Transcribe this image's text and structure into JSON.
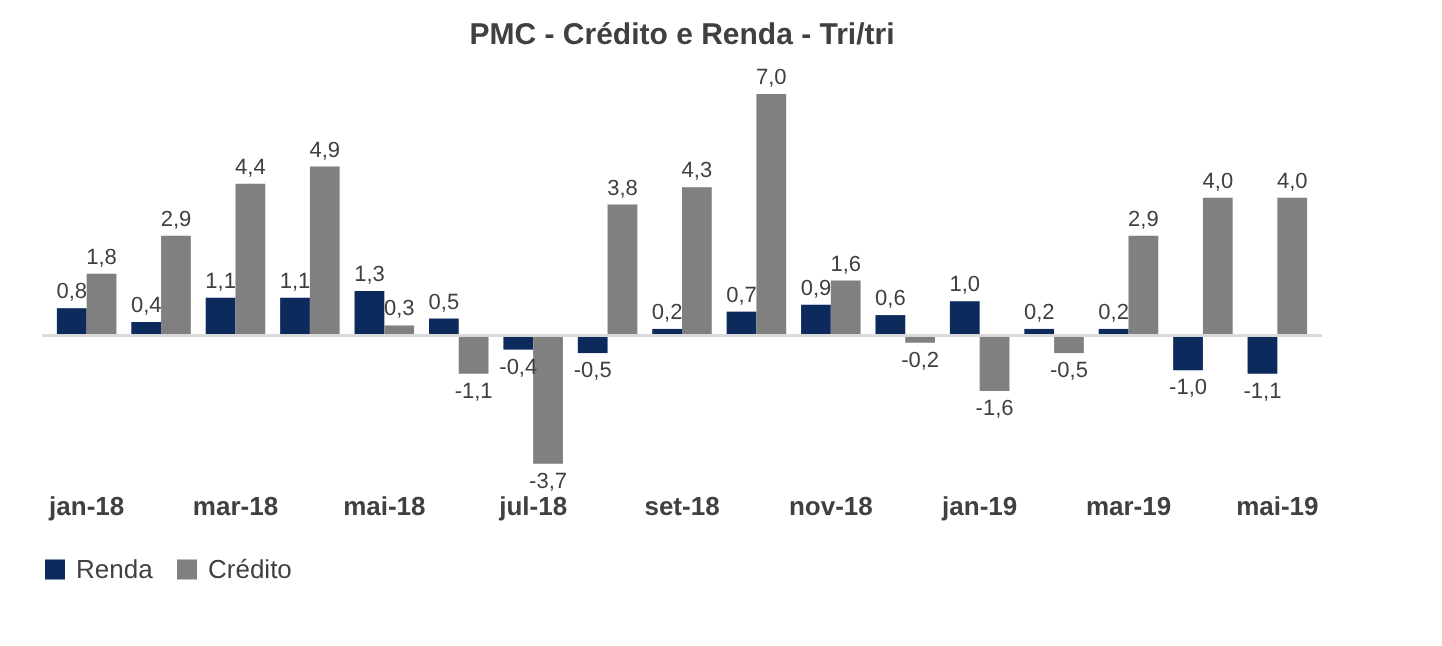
{
  "chart_data": {
    "type": "bar",
    "title": "PMC - Crédito e Renda - Tri/tri",
    "categories": [
      "jan-18",
      null,
      "mar-18",
      null,
      "mai-18",
      null,
      "jul-18",
      null,
      "set-18",
      null,
      "nov-18",
      null,
      "jan-19",
      null,
      "mar-19",
      null,
      "mai-19"
    ],
    "series": [
      {
        "name": "Renda",
        "color": "#0d2a5c",
        "values": [
          0.8,
          0.4,
          1.1,
          1.1,
          1.3,
          0.5,
          -0.4,
          -0.5,
          0.2,
          0.7,
          0.9,
          0.6,
          1.0,
          0.2,
          0.2,
          -1.0,
          -1.1
        ],
        "value_labels": [
          "0,8",
          "0,4",
          "1,1",
          "1,1",
          "1,3",
          "0,5",
          "-0,4",
          "-0,5",
          "0,2",
          "0,7",
          "0,9",
          "0,6",
          "1,0",
          "0,2",
          "0,2",
          "-1,0",
          "-1,1"
        ]
      },
      {
        "name": "Crédito",
        "color": "#808080",
        "values": [
          1.8,
          2.9,
          4.4,
          4.9,
          0.3,
          -1.1,
          -3.7,
          3.8,
          4.3,
          7.0,
          1.6,
          -0.2,
          -1.6,
          -0.5,
          2.9,
          4.0,
          4.0
        ],
        "value_labels": [
          "1,8",
          "2,9",
          "4,4",
          "4,9",
          "0,3",
          "-1,1",
          "-3,7",
          "3,8",
          "4,3",
          "7,0",
          "1,6",
          "-0,2",
          "-1,6",
          "-0,5",
          "2,9",
          "4,0",
          "4,0"
        ]
      }
    ],
    "legend": "bottom"
  }
}
